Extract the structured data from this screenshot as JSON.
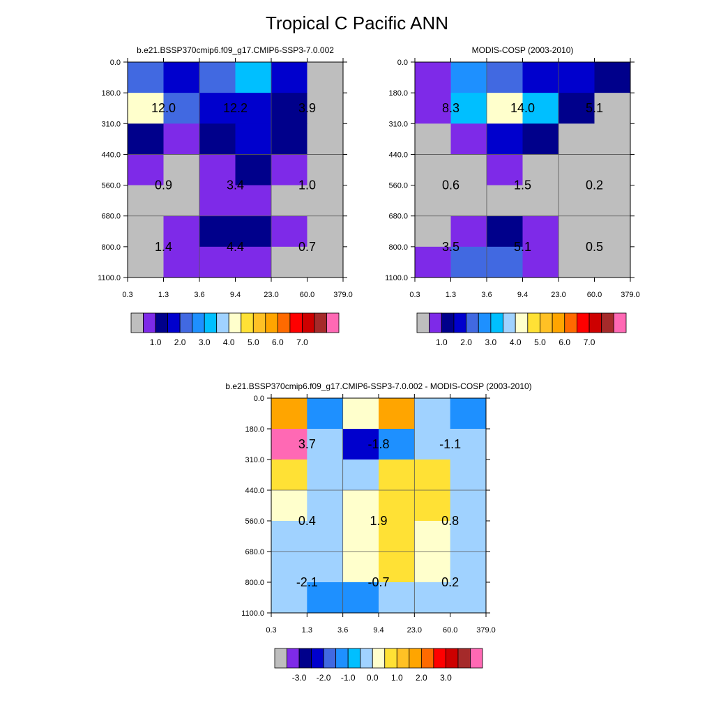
{
  "title": "Tropical C Pacific ANN",
  "chart_data": [
    {
      "type": "heatmap",
      "title": "b.e21.BSSP370cmip6.f09_g17.CMIP6-SSP3-7.0.002",
      "x_edges": [
        "0.3",
        "1.3",
        "3.6",
        "9.4",
        "23.0",
        "60.0",
        "379.0"
      ],
      "y_edges": [
        "0.0",
        "180.0",
        "310.0",
        "440.0",
        "560.0",
        "680.0",
        "800.0",
        "1100.0"
      ],
      "colors": [
        [
          "#4169e1",
          "#0000cd",
          "#4169e1",
          "#00bfff",
          "#0000cd",
          "#bebebe"
        ],
        [
          "#ffffcc",
          "#4169e1",
          "#0000cd",
          "#0000cd",
          "#00008b",
          "#bebebe"
        ],
        [
          "#00008b",
          "#7e2ae8",
          "#00008b",
          "#0000cd",
          "#00008b",
          "#bebebe"
        ],
        [
          "#7e2ae8",
          "#bebebe",
          "#7e2ae8",
          "#00008b",
          "#7e2ae8",
          "#bebebe"
        ],
        [
          "#bebebe",
          "#bebebe",
          "#7e2ae8",
          "#7e2ae8",
          "#bebebe",
          "#bebebe"
        ],
        [
          "#bebebe",
          "#7e2ae8",
          "#00008b",
          "#00008b",
          "#7e2ae8",
          "#bebebe"
        ],
        [
          "#bebebe",
          "#7e2ae8",
          "#7e2ae8",
          "#7e2ae8",
          "#bebebe",
          "#bebebe"
        ]
      ],
      "box_values": [
        [
          "12.0",
          "12.2",
          "3.9"
        ],
        [
          "0.9",
          "3.4",
          "1.0"
        ],
        [
          "1.4",
          "4.4",
          "0.7"
        ]
      ],
      "colorbar": {
        "colors": [
          "#bebebe",
          "#7e2ae8",
          "#00008b",
          "#0000cd",
          "#4169e1",
          "#1e90ff",
          "#00bfff",
          "#a0d2ff",
          "#ffffcc",
          "#ffe135",
          "#ffc125",
          "#ffa500",
          "#ff6a00",
          "#ff0000",
          "#cd0000",
          "#a52a2a",
          "#ff69b4"
        ],
        "labels": [
          "1.0",
          "2.0",
          "3.0",
          "4.0",
          "5.0",
          "6.0",
          "7.0"
        ]
      }
    },
    {
      "type": "heatmap",
      "title": "MODIS-COSP (2003-2010)",
      "x_edges": [
        "0.3",
        "1.3",
        "3.6",
        "9.4",
        "23.0",
        "60.0",
        "379.0"
      ],
      "y_edges": [
        "0.0",
        "180.0",
        "310.0",
        "440.0",
        "560.0",
        "680.0",
        "800.0",
        "1100.0"
      ],
      "colors": [
        [
          "#7e2ae8",
          "#1e90ff",
          "#4169e1",
          "#0000cd",
          "#0000cd",
          "#00008b"
        ],
        [
          "#7e2ae8",
          "#00bfff",
          "#ffffcc",
          "#00bfff",
          "#00008b",
          "#bebebe"
        ],
        [
          "#bebebe",
          "#7e2ae8",
          "#0000cd",
          "#00008b",
          "#bebebe",
          "#bebebe"
        ],
        [
          "#bebebe",
          "#bebebe",
          "#7e2ae8",
          "#bebebe",
          "#bebebe",
          "#bebebe"
        ],
        [
          "#bebebe",
          "#bebebe",
          "#bebebe",
          "#bebebe",
          "#bebebe",
          "#bebebe"
        ],
        [
          "#bebebe",
          "#7e2ae8",
          "#00008b",
          "#7e2ae8",
          "#bebebe",
          "#bebebe"
        ],
        [
          "#7e2ae8",
          "#4169e1",
          "#4169e1",
          "#7e2ae8",
          "#bebebe",
          "#bebebe"
        ]
      ],
      "box_values": [
        [
          "8.3",
          "14.0",
          "5.1"
        ],
        [
          "0.6",
          "1.5",
          "0.2"
        ],
        [
          "3.5",
          "5.1",
          "0.5"
        ]
      ],
      "colorbar": {
        "colors": [
          "#bebebe",
          "#7e2ae8",
          "#00008b",
          "#0000cd",
          "#4169e1",
          "#1e90ff",
          "#00bfff",
          "#a0d2ff",
          "#ffffcc",
          "#ffe135",
          "#ffc125",
          "#ffa500",
          "#ff6a00",
          "#ff0000",
          "#cd0000",
          "#a52a2a",
          "#ff69b4"
        ],
        "labels": [
          "1.0",
          "2.0",
          "3.0",
          "4.0",
          "5.0",
          "6.0",
          "7.0"
        ]
      }
    },
    {
      "type": "heatmap",
      "title": "b.e21.BSSP370cmip6.f09_g17.CMIP6-SSP3-7.0.002 - MODIS-COSP (2003-2010)",
      "x_edges": [
        "0.3",
        "1.3",
        "3.6",
        "9.4",
        "23.0",
        "60.0",
        "379.0"
      ],
      "y_edges": [
        "0.0",
        "180.0",
        "310.0",
        "440.0",
        "560.0",
        "680.0",
        "800.0",
        "1100.0"
      ],
      "colors": [
        [
          "#ffa500",
          "#1e90ff",
          "#ffffcc",
          "#ffa500",
          "#a0d2ff",
          "#1e90ff"
        ],
        [
          "#ff69b4",
          "#a0d2ff",
          "#0000cd",
          "#1e90ff",
          "#a0d2ff",
          "#a0d2ff"
        ],
        [
          "#ffe135",
          "#a0d2ff",
          "#a0d2ff",
          "#ffe135",
          "#ffe135",
          "#a0d2ff"
        ],
        [
          "#ffffcc",
          "#a0d2ff",
          "#ffffcc",
          "#ffe135",
          "#ffe135",
          "#a0d2ff"
        ],
        [
          "#a0d2ff",
          "#a0d2ff",
          "#ffffcc",
          "#ffe135",
          "#ffffcc",
          "#a0d2ff"
        ],
        [
          "#a0d2ff",
          "#a0d2ff",
          "#ffffcc",
          "#ffe135",
          "#ffffcc",
          "#a0d2ff"
        ],
        [
          "#a0d2ff",
          "#1e90ff",
          "#1e90ff",
          "#a0d2ff",
          "#a0d2ff",
          "#a0d2ff"
        ]
      ],
      "box_values": [
        [
          "3.7",
          "-1.8",
          "-1.1"
        ],
        [
          "0.4",
          "1.9",
          "0.8"
        ],
        [
          "-2.1",
          "-0.7",
          "0.2"
        ]
      ],
      "colorbar": {
        "colors": [
          "#bebebe",
          "#7e2ae8",
          "#00008b",
          "#0000cd",
          "#4169e1",
          "#1e90ff",
          "#00bfff",
          "#a0d2ff",
          "#ffffcc",
          "#ffe135",
          "#ffc125",
          "#ffa500",
          "#ff6a00",
          "#ff0000",
          "#cd0000",
          "#a52a2a",
          "#ff69b4"
        ],
        "labels": [
          "-3.0",
          "-2.0",
          "-1.0",
          "0.0",
          "1.0",
          "2.0",
          "3.0"
        ]
      }
    }
  ]
}
